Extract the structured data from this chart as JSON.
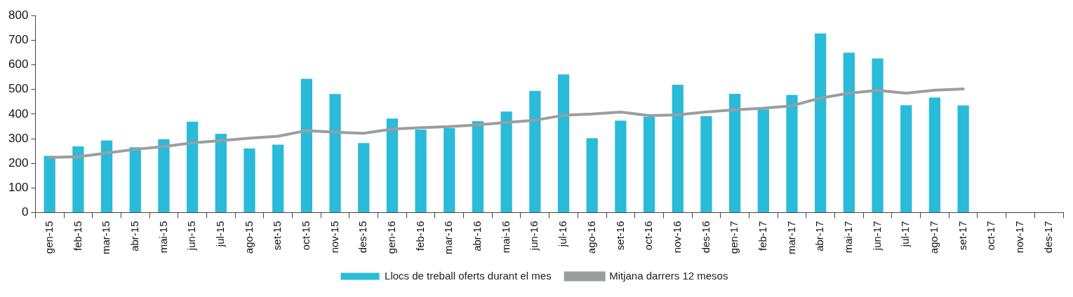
{
  "chart_data": {
    "type": "bar",
    "categories": [
      "gen-15",
      "feb-15",
      "mar-15",
      "abr-15",
      "mai-15",
      "jun-15",
      "jul-15",
      "ago-15",
      "set-15",
      "oct-15",
      "nov-15",
      "des-15",
      "gen-16",
      "feb-16",
      "mar-16",
      "abr-16",
      "mai-16",
      "jun-16",
      "jul-16",
      "ago-16",
      "set-16",
      "oct-16",
      "nov-16",
      "des-16",
      "gen-17",
      "feb-17",
      "mar-17",
      "abr-17",
      "mai-17",
      "jun-17",
      "jul-17",
      "ago-17",
      "set-17",
      "oct-17",
      "nov-17",
      "des-17"
    ],
    "series": [
      {
        "name": "Llocs de treball oferts durant el mes",
        "color": "#29bbd9",
        "values": [
          230,
          269,
          293,
          265,
          298,
          369,
          320,
          260,
          276,
          543,
          481,
          282,
          382,
          337,
          343,
          371,
          410,
          494,
          561,
          302,
          373,
          389,
          519,
          392,
          482,
          419,
          478,
          727,
          649,
          626,
          436,
          467,
          435,
          null,
          null,
          null
        ]
      },
      {
        "name": "Mitjana darrers 12 mesos",
        "type": "line",
        "color": "#9b9e9e",
        "values": [
          224,
          227,
          242,
          257,
          268,
          283,
          292,
          302,
          310,
          333,
          326,
          322,
          339,
          345,
          349,
          356,
          366,
          375,
          395,
          400,
          408,
          394,
          397,
          409,
          417,
          424,
          434,
          465,
          485,
          496,
          485,
          497,
          502,
          null,
          null,
          null
        ]
      }
    ],
    "ylim": [
      0,
      800
    ],
    "yticks": [
      0,
      100,
      200,
      300,
      400,
      500,
      600,
      700,
      800
    ],
    "legend": "bottom",
    "grid": false,
    "marker": "none"
  }
}
